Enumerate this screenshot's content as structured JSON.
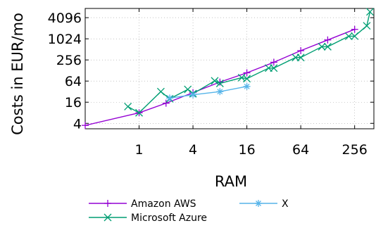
{
  "chart_data": {
    "type": "line",
    "xlabel": "RAM",
    "ylabel": "Costs in EUR/mo",
    "x_scale": "log2",
    "y_scale": "log2",
    "xlim": [
      0.25,
      420
    ],
    "ylim": [
      2.8,
      7500
    ],
    "x_ticks": [
      {
        "value": 1,
        "label": "1"
      },
      {
        "value": 4,
        "label": "4"
      },
      {
        "value": 16,
        "label": "16"
      },
      {
        "value": 64,
        "label": "64"
      },
      {
        "value": 256,
        "label": "256"
      }
    ],
    "y_ticks": [
      {
        "value": 4,
        "label": "4"
      },
      {
        "value": 16,
        "label": "16"
      },
      {
        "value": 64,
        "label": "64"
      },
      {
        "value": 256,
        "label": "256"
      },
      {
        "value": 1024,
        "label": "1024"
      },
      {
        "value": 4096,
        "label": "4096"
      }
    ],
    "grid": true,
    "legend_position": "bottom",
    "series": [
      {
        "name": "Amazon AWS",
        "color": "#9400d3",
        "marker": "plus",
        "points": [
          [
            0.25,
            3.5
          ],
          [
            1,
            8
          ],
          [
            2,
            15
          ],
          [
            4,
            30
          ],
          [
            8,
            60
          ],
          [
            16,
            110
          ],
          [
            32,
            220
          ],
          [
            64,
            470
          ],
          [
            128,
            950
          ],
          [
            256,
            1900
          ]
        ]
      },
      {
        "name": "Microsoft Azure",
        "color": "#009e73",
        "marker": "x",
        "points": [
          [
            0.75,
            12
          ],
          [
            1,
            8
          ],
          [
            1.75,
            32
          ],
          [
            2.2,
            20
          ],
          [
            3.5,
            37
          ],
          [
            4,
            28
          ],
          [
            7,
            65
          ],
          [
            8,
            55
          ],
          [
            14,
            80
          ],
          [
            16,
            75
          ],
          [
            28,
            150
          ],
          [
            32,
            150
          ],
          [
            56,
            300
          ],
          [
            64,
            300
          ],
          [
            110,
            610
          ],
          [
            128,
            610
          ],
          [
            220,
            1210
          ],
          [
            256,
            1220
          ],
          [
            350,
            2400
          ],
          [
            380,
            6000
          ]
        ]
      },
      {
        "name": "X",
        "color": "#56b4e9",
        "marker": "star",
        "points": [
          [
            2.2,
            21
          ],
          [
            4,
            26
          ],
          [
            8,
            32
          ],
          [
            16,
            45
          ]
        ]
      }
    ]
  }
}
